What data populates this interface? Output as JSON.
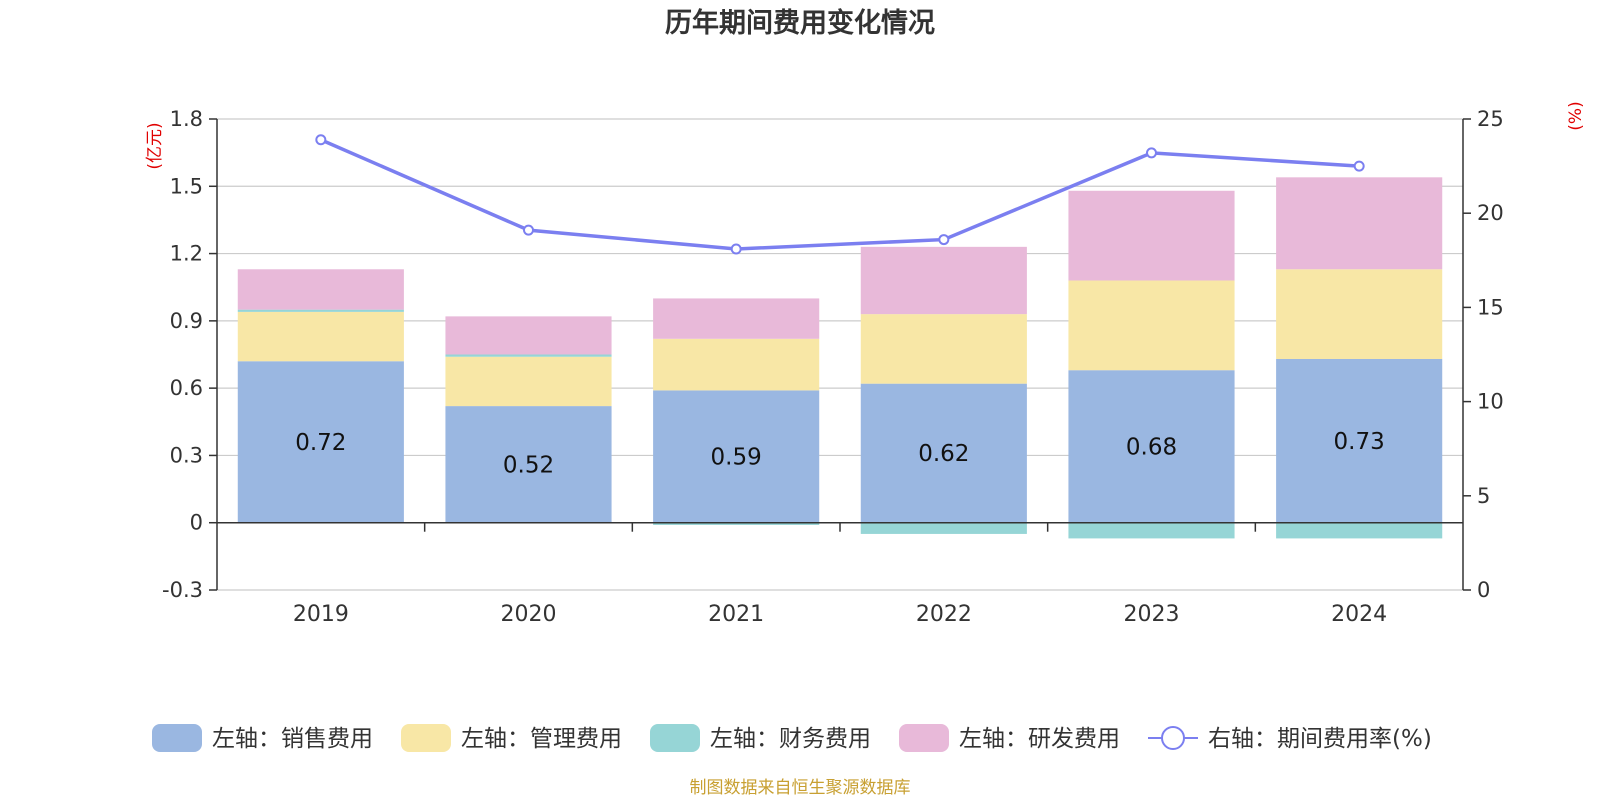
{
  "chart_data": {
    "type": "bar",
    "title": "历年期间费用变化情况",
    "categories": [
      "2019",
      "2020",
      "2021",
      "2022",
      "2023",
      "2024"
    ],
    "series": [
      {
        "name": "左轴：销售费用",
        "axis": "left",
        "color": "#9ab7e1",
        "values": [
          0.72,
          0.52,
          0.59,
          0.62,
          0.68,
          0.73
        ]
      },
      {
        "name": "左轴：管理费用",
        "axis": "left",
        "color": "#f8e7a6",
        "values": [
          0.22,
          0.22,
          0.23,
          0.31,
          0.4,
          0.4
        ]
      },
      {
        "name": "左轴：财务费用",
        "axis": "left",
        "color": "#96d5d6",
        "values": [
          0.01,
          0.01,
          -0.01,
          -0.05,
          -0.07,
          -0.07
        ]
      },
      {
        "name": "左轴：研发费用",
        "axis": "left",
        "color": "#e8b9d9",
        "values": [
          0.18,
          0.17,
          0.18,
          0.3,
          0.4,
          0.41
        ]
      },
      {
        "name": "右轴：期间费用率(%)",
        "axis": "right",
        "type": "line",
        "color": "#7b7ff0",
        "values": [
          23.9,
          19.1,
          18.1,
          18.6,
          23.2,
          22.5
        ]
      }
    ],
    "data_labels": [
      "0.72",
      "0.52",
      "0.59",
      "0.62",
      "0.68",
      "0.73"
    ],
    "left_axis": {
      "unit": "(亿元)",
      "min": -0.3,
      "max": 1.8,
      "ticks": [
        -0.3,
        0,
        0.3,
        0.6,
        0.9,
        1.2,
        1.5,
        1.8
      ],
      "tick_labels": [
        "-0.3",
        "0",
        "0.3",
        "0.6",
        "0.9",
        "1.2",
        "1.5",
        "1.8"
      ]
    },
    "right_axis": {
      "unit": "(%)",
      "min": 0,
      "max": 25,
      "ticks": [
        0,
        5,
        10,
        15,
        20,
        25
      ],
      "tick_labels": [
        "0",
        "5",
        "10",
        "15",
        "20",
        "25"
      ]
    },
    "grid": true,
    "legend_position": "bottom",
    "source": "制图数据来自恒生聚源数据库"
  }
}
